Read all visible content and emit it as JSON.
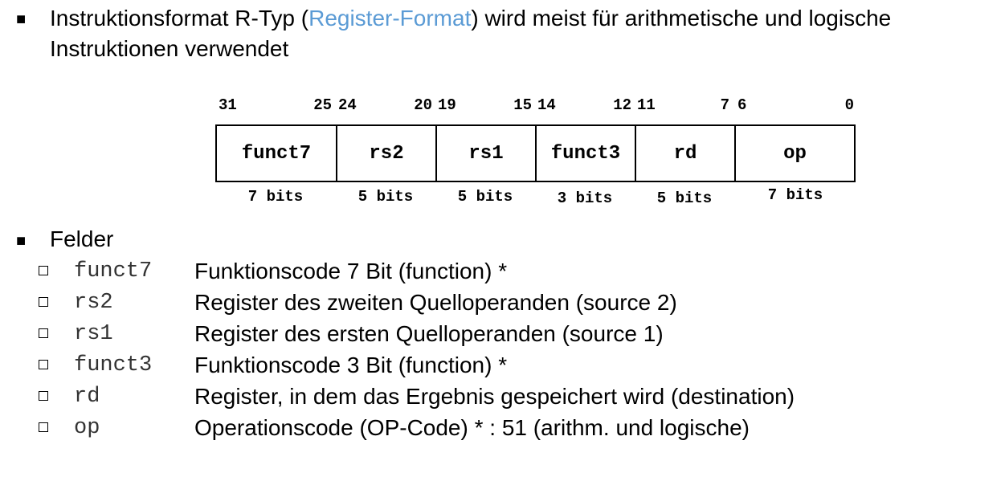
{
  "intro": {
    "bullet": "■",
    "text_before": "Instruktionsformat R-Typ (",
    "link_text": "Register-Format",
    "text_after": ") wird meist für arithmetische und logische Instruktionen verwendet"
  },
  "format": {
    "bit_numbers": [
      "31",
      "25",
      "24",
      "20",
      "19",
      "15",
      "14",
      "12",
      "11",
      "7",
      "6",
      "0"
    ],
    "fields": [
      "funct7",
      "rs2",
      "rs1",
      "funct3",
      "rd",
      "op"
    ],
    "widths": [
      "7 bits",
      "5 bits",
      "5 bits",
      "3 bits",
      "5 bits",
      "7 bits"
    ]
  },
  "fields_section": {
    "bullet": "■",
    "title": "Felder",
    "items": [
      {
        "name": "funct7",
        "desc": "Funktionscode 7 Bit (function) *"
      },
      {
        "name": "rs2",
        "desc": "Register des zweiten Quelloperanden (source 2)"
      },
      {
        "name": "rs1",
        "desc": "Register des ersten Quelloperanden (source 1)"
      },
      {
        "name": "funct3",
        "desc": "Funktionscode 3 Bit (function) *"
      },
      {
        "name": "rd",
        "desc": "Register, in dem das Ergebnis gespeichert wird (destination)"
      },
      {
        "name": "op",
        "desc": "Operationscode (OP-Code) * : 51 (arithm. und logische)"
      }
    ]
  },
  "colors": {
    "link": "#5b9bd5",
    "text": "#000000"
  }
}
